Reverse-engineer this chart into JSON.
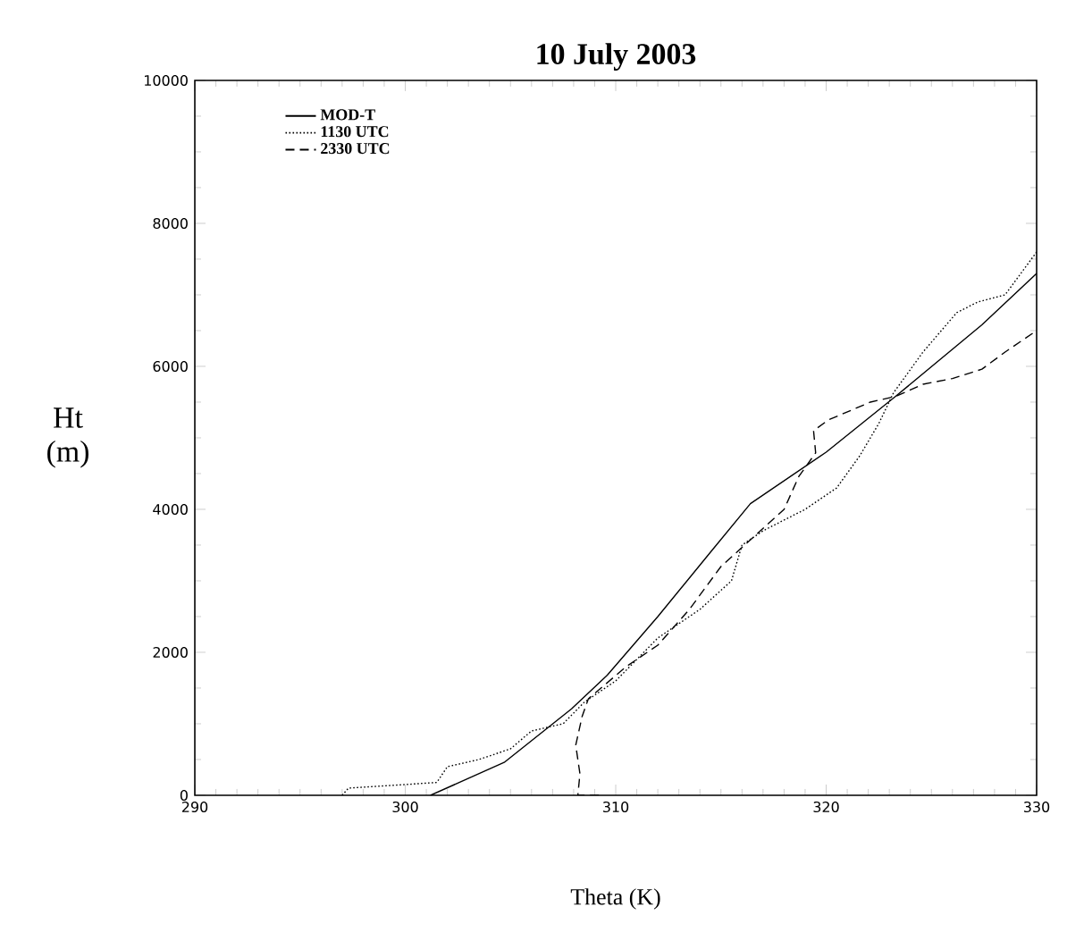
{
  "chart_data": {
    "type": "line",
    "title": "10 July 2003",
    "xlabel": "Theta (K)",
    "ylabel": "Ht (m)",
    "xlim": [
      290,
      330
    ],
    "xticks": [
      290,
      300,
      310,
      320,
      330
    ],
    "ylim": [
      0,
      10000
    ],
    "yticks": [
      0,
      2000,
      4000,
      6000,
      8000,
      10000
    ],
    "grid": false,
    "legend": "top left",
    "series": [
      {
        "name": "MOD-T",
        "color": "#000000",
        "line_style": "solid",
        "x": [
          301.2,
          304.7,
          307.9,
          309.6,
          312,
          314.5,
          316.4,
          320,
          323.3,
          327.4,
          330
        ],
        "values": [
          0,
          460,
          1210,
          1680,
          2500,
          3400,
          4080,
          4800,
          5580,
          6580,
          7300
        ]
      },
      {
        "name": "1130 UTC",
        "color": "#000000",
        "line_style": "dotted",
        "x": [
          297,
          297.3,
          300,
          301.5,
          302,
          303.5,
          305,
          306,
          307.5,
          308.5,
          310,
          312,
          314,
          315.5,
          316,
          317,
          319,
          320.5,
          321.6,
          322.5,
          323.2,
          324.6,
          326.2,
          327.2,
          328.5,
          329.5,
          330
        ],
        "values": [
          0,
          100,
          150,
          180,
          400,
          500,
          650,
          900,
          1000,
          1300,
          1600,
          2200,
          2600,
          3000,
          3500,
          3700,
          4000,
          4300,
          4750,
          5200,
          5630,
          6200,
          6750,
          6900,
          7000,
          7400,
          7600
        ]
      },
      {
        "name": "2330 UTC",
        "color": "#000000",
        "line_style": "dashed",
        "x": [
          309.2,
          308.2,
          308.3,
          308.1,
          308.4,
          308.7,
          309.5,
          310.5,
          312,
          313.5,
          315,
          316.5,
          318,
          318.7,
          319.5,
          319.4,
          320.1,
          322.1,
          323.3,
          324.6,
          326,
          327.4,
          328.5,
          330
        ],
        "values": [
          0,
          0,
          300,
          700,
          1100,
          1350,
          1550,
          1800,
          2100,
          2600,
          3200,
          3600,
          4000,
          4460,
          4790,
          5100,
          5250,
          5500,
          5580,
          5750,
          5830,
          5960,
          6200,
          6500
        ]
      }
    ]
  }
}
